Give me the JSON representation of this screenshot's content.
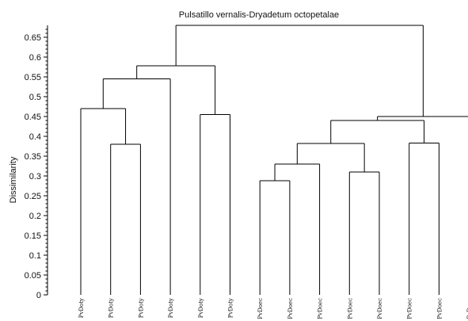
{
  "chart_data": {
    "type": "dendrogram",
    "title": "Pulsatillo vernalis-Dryadetum octopetalae",
    "ylabel": "Dissimilarity",
    "xlabel": "",
    "ylim": [
      0,
      0.68
    ],
    "yticks": [
      "0",
      "0.05",
      "0.1",
      "0.15",
      "0.2",
      "0.25",
      "0.3",
      "0.35",
      "0.4",
      "0.45",
      "0.5",
      "0.55",
      "0.6",
      "0.65"
    ],
    "leaves": [
      "PvDoty",
      "PvDoty",
      "PvDoty",
      "PvDoty",
      "PvDoty",
      "PvDoty",
      "PvDoec",
      "PvDoec",
      "PvDoec",
      "PvDoec",
      "PvDoec",
      "PvDoec",
      "PvDoec",
      "PvDoec"
    ],
    "merges": [
      {
        "left": "L1",
        "right": "L2",
        "height": 0.38
      },
      {
        "left": "L0",
        "right": "M0",
        "height": 0.47
      },
      {
        "left": "M1",
        "right": "L3",
        "height": 0.545
      },
      {
        "left": "L4",
        "right": "L5",
        "height": 0.455
      },
      {
        "left": "M2",
        "right": "M3",
        "height": 0.578
      },
      {
        "left": "L6",
        "right": "L7",
        "height": 0.288
      },
      {
        "left": "M5",
        "right": "L8",
        "height": 0.33
      },
      {
        "left": "L9",
        "right": "L10",
        "height": 0.31
      },
      {
        "left": "M6",
        "right": "M7",
        "height": 0.382
      },
      {
        "left": "L11",
        "right": "L12",
        "height": 0.383
      },
      {
        "left": "M8",
        "right": "M9",
        "height": 0.44
      },
      {
        "left": "M10",
        "right": "L13",
        "height": 0.45
      },
      {
        "left": "M4",
        "right": "M11",
        "height": 0.68
      }
    ]
  }
}
